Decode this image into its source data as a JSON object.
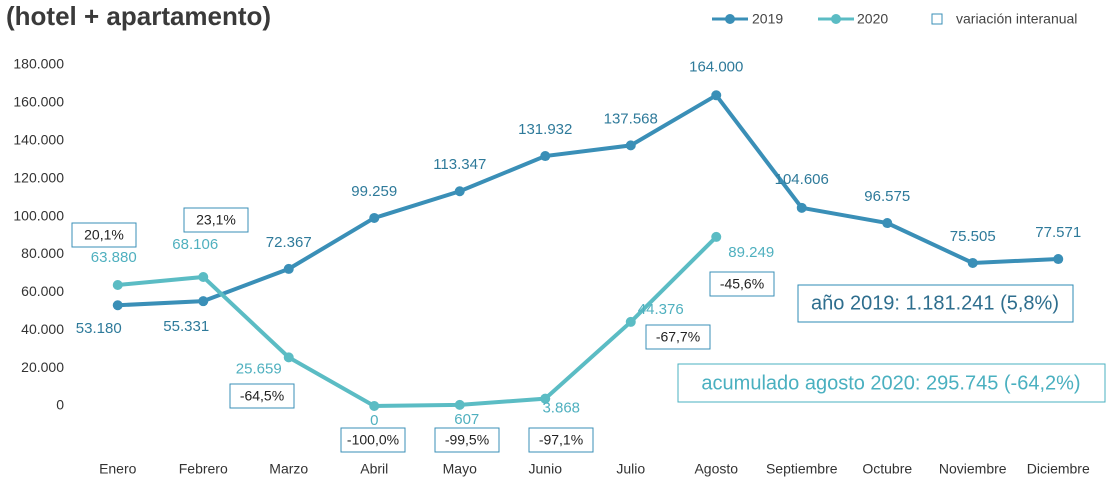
{
  "chart_data": {
    "type": "line",
    "title": "(hotel + apartamento)",
    "categories": [
      "Enero",
      "Febrero",
      "Marzo",
      "Abril",
      "Mayo",
      "Junio",
      "Julio",
      "Agosto",
      "Septiembre",
      "Octubre",
      "Noviembre",
      "Diciembre"
    ],
    "series": [
      {
        "name": "2019",
        "color": "#3a8fb7",
        "values": [
          53180,
          55331,
          72367,
          99259,
          113347,
          131932,
          137568,
          164000,
          104606,
          96575,
          75505,
          77571
        ],
        "value_labels": [
          "53.180",
          "55.331",
          "72.367",
          "99.259",
          "113.347",
          "131.932",
          "137.568",
          "164.000",
          "104.606",
          "96.575",
          "75.505",
          "77.571"
        ]
      },
      {
        "name": "2020",
        "color": "#5bbcc4",
        "values": [
          63880,
          68106,
          25659,
          0,
          607,
          3868,
          44376,
          89249,
          null,
          null,
          null,
          null
        ],
        "value_labels": [
          "63.880",
          "68.106",
          "25.659",
          "0",
          "607",
          "3.868",
          "44.376",
          "89.249",
          null,
          null,
          null,
          null
        ]
      }
    ],
    "variation": {
      "name": "variación interanual",
      "color": "#3a8fb7",
      "values": [
        20.1,
        23.1,
        -64.5,
        -100.0,
        -99.5,
        -97.1,
        -67.7,
        -45.6
      ],
      "value_labels": [
        "20,1%",
        "23,1%",
        "-64,5%",
        "-100,0%",
        "-99,5%",
        "-97,1%",
        "-67,7%",
        "-45,6%"
      ]
    },
    "annotations": [
      "año 2019: 1.181.241 (5,8%)",
      "acumulado agosto 2020: 295.745 (-64,2%)"
    ],
    "ylim": [
      0,
      180000
    ],
    "yticks": [
      0,
      {
        "value": 20000,
        "label": "20.000"
      },
      {
        "value": 40000,
        "label": "40.000"
      },
      {
        "value": 60000,
        "label": "60.000"
      },
      {
        "value": 80000,
        "label": "80.000"
      },
      {
        "value": 100000,
        "label": "100.000"
      },
      {
        "value": 120000,
        "label": "120.000"
      },
      {
        "value": 140000,
        "label": "140.000"
      },
      {
        "value": 160000,
        "label": "160.000"
      },
      {
        "value": 180000,
        "label": "180.000"
      }
    ],
    "grid": false
  }
}
